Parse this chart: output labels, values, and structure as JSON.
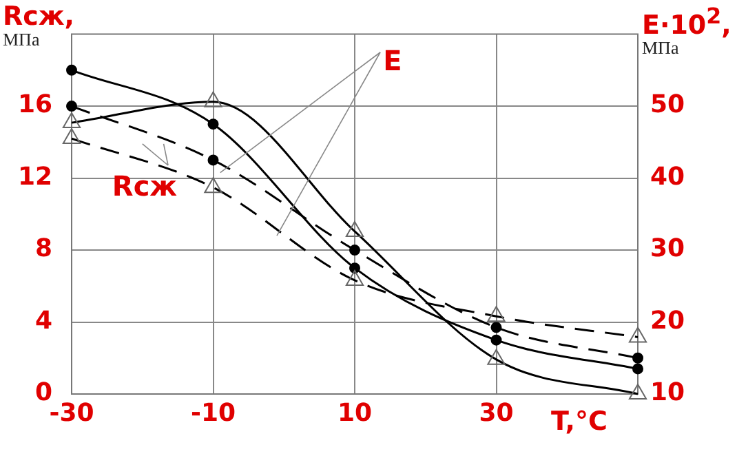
{
  "chart_data": {
    "type": "line",
    "xlabel": "T,°C",
    "ylabel": "Rсж, МПа",
    "y2label": "E·10$^{2}$, МПа",
    "x": [
      -30,
      -10,
      10,
      30,
      50
    ],
    "series": [
      {
        "color": "#000000",
        "values": [
          18,
          15,
          7,
          3,
          1.4
        ],
        "marker": "circle",
        "line_style": "solid"
      },
      {
        "color": "#000000",
        "values": [
          16,
          13,
          8,
          3.7,
          2
        ],
        "marker": "circle",
        "line_style": "dashed"
      },
      {
        "color": "#000000",
        "values": [
          47.7,
          50.6,
          32.6,
          14.8,
          10
        ],
        "marker": "triangle",
        "line_style": "solid",
        "axis": "y2"
      },
      {
        "color": "#000000",
        "values": [
          45.5,
          38.7,
          25.8,
          20.8,
          17.9
        ],
        "marker": "triangle",
        "line_style": "dashed",
        "axis": "y2"
      }
    ],
    "xlim": [
      -30,
      50
    ],
    "xticks": [
      -30,
      -10,
      10,
      30,
      {
        "value": 50,
        "label": null
      }
    ],
    "ylim": [
      0,
      20
    ],
    "yticks": [
      0,
      4,
      8,
      12,
      16
    ],
    "y2lim": [
      10,
      60
    ],
    "y2ticks": [
      10,
      20,
      30,
      40,
      50
    ],
    "annotations": [
      "Rсж",
      {
        "text": "E",
        "x": -9,
        "y": 12.3
      }
    ],
    "grid": true,
    "legend": false
  }
}
